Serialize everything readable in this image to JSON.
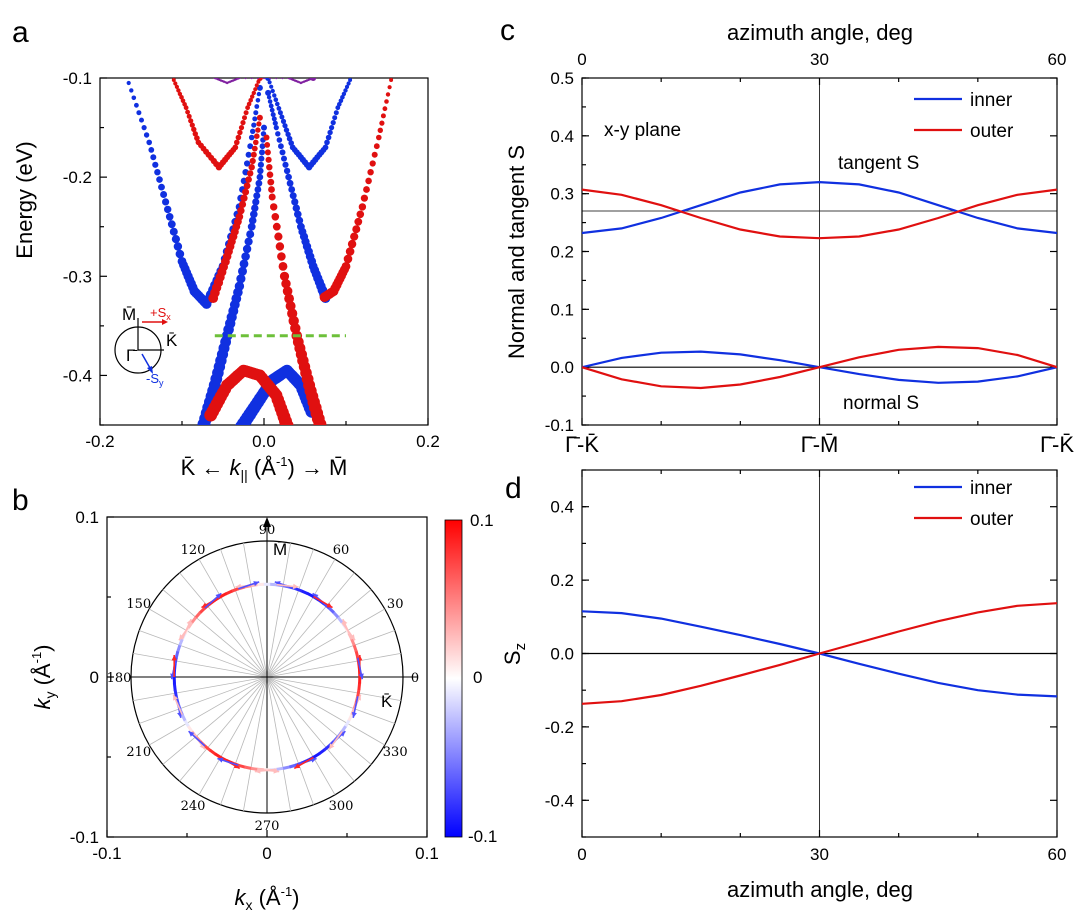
{
  "panel_labels": {
    "a": "a",
    "b": "b",
    "c": "c",
    "d": "d"
  },
  "chart_data": [
    {
      "id": "a",
      "type": "scatter",
      "xlabel_left": "K̄ ←",
      "xlabel_k": "k",
      "xlabel_sub": "||",
      "xlabel_unit": " (Å",
      "xlabel_exp": "-1",
      "xlabel_right": ") → M̄",
      "ylabel": "Energy (eV)",
      "xlim": [
        -0.2,
        0.2
      ],
      "ylim": [
        -0.45,
        -0.1
      ],
      "xticks": [
        "-0.2",
        "0.0",
        "0.2"
      ],
      "yticks": [
        "-0.1",
        "-0.2",
        "-0.3",
        "-0.4"
      ],
      "fermi_line_energy": -0.36,
      "fermi_line_color": "#6dc03a",
      "inset": {
        "m": "M̄",
        "k": "K̄",
        "g": "Γ̄",
        "sx": "+S",
        "sx_sub": "x",
        "sy": "-S",
        "sy_sub": "y"
      },
      "series": [
        {
          "color": "#1030e0",
          "points": [
            [
              -0.165,
              -0.105
            ],
            [
              -0.14,
              -0.165
            ],
            [
              -0.12,
              -0.225
            ],
            [
              -0.1,
              -0.285
            ],
            [
              -0.085,
              -0.315
            ],
            [
              -0.07,
              -0.328
            ]
          ]
        },
        {
          "color": "#1030e0",
          "points": [
            [
              -0.07,
              -0.328
            ],
            [
              -0.05,
              -0.29
            ],
            [
              -0.03,
              -0.23
            ],
            [
              -0.015,
              -0.16
            ],
            [
              -0.005,
              -0.11
            ]
          ]
        },
        {
          "color": "#1030e0",
          "points": [
            [
              0.105,
              -0.102
            ],
            [
              0.09,
              -0.13
            ],
            [
              0.075,
              -0.17
            ],
            [
              0.055,
              -0.19
            ],
            [
              0.035,
              -0.17
            ],
            [
              0.02,
              -0.135
            ],
            [
              0.005,
              -0.1
            ]
          ]
        },
        {
          "color": "#1030e0",
          "points": [
            [
              0.075,
              -0.322
            ],
            [
              0.06,
              -0.29
            ],
            [
              0.045,
              -0.25
            ],
            [
              0.03,
              -0.2
            ],
            [
              0.015,
              -0.15
            ],
            [
              0.005,
              -0.115
            ]
          ]
        },
        {
          "color": "#1030e0",
          "points": [
            [
              -0.075,
              -0.455
            ],
            [
              -0.06,
              -0.41
            ],
            [
              -0.045,
              -0.36
            ],
            [
              -0.03,
              -0.31
            ],
            [
              -0.015,
              -0.25
            ],
            [
              -0.005,
              -0.2
            ],
            [
              0.0,
              -0.15
            ]
          ]
        },
        {
          "color": "#1030e0",
          "points": [
            [
              -0.03,
              -0.455
            ],
            [
              -0.01,
              -0.43
            ],
            [
              0.01,
              -0.405
            ],
            [
              0.028,
              -0.395
            ],
            [
              0.045,
              -0.41
            ],
            [
              0.06,
              -0.44
            ]
          ]
        },
        {
          "color": "#e01010",
          "points": [
            [
              -0.11,
              -0.102
            ],
            [
              -0.095,
              -0.13
            ],
            [
              -0.08,
              -0.165
            ],
            [
              -0.055,
              -0.19
            ],
            [
              -0.035,
              -0.17
            ],
            [
              -0.02,
              -0.13
            ],
            [
              -0.005,
              -0.1
            ]
          ]
        },
        {
          "color": "#e01010",
          "points": [
            [
              0.155,
              -0.102
            ],
            [
              0.14,
              -0.16
            ],
            [
              0.12,
              -0.23
            ],
            [
              0.1,
              -0.29
            ],
            [
              0.085,
              -0.315
            ],
            [
              0.072,
              -0.322
            ]
          ]
        },
        {
          "color": "#e01010",
          "points": [
            [
              -0.065,
              -0.44
            ],
            [
              -0.045,
              -0.41
            ],
            [
              -0.025,
              -0.395
            ],
            [
              -0.005,
              -0.4
            ],
            [
              0.015,
              -0.42
            ],
            [
              0.03,
              -0.455
            ]
          ]
        },
        {
          "color": "#e01010",
          "points": [
            [
              -0.062,
              -0.322
            ],
            [
              -0.045,
              -0.28
            ],
            [
              -0.03,
              -0.24
            ],
            [
              -0.015,
              -0.19
            ],
            [
              -0.005,
              -0.14
            ]
          ]
        },
        {
          "color": "#e01010",
          "points": [
            [
              0.07,
              -0.455
            ],
            [
              0.055,
              -0.41
            ],
            [
              0.04,
              -0.36
            ],
            [
              0.025,
              -0.3
            ],
            [
              0.01,
              -0.22
            ],
            [
              0.003,
              -0.16
            ]
          ]
        },
        {
          "color": "#8020a0",
          "points": [
            [
              -0.06,
              -0.1
            ],
            [
              -0.045,
              -0.105
            ],
            [
              -0.03,
              -0.1
            ],
            [
              0.03,
              -0.1
            ],
            [
              0.045,
              -0.105
            ],
            [
              0.06,
              -0.1
            ]
          ]
        }
      ]
    },
    {
      "id": "b",
      "type": "scatter",
      "xlabel": "k",
      "xlabel_sub": "x",
      "xlabel_unit": " (Å",
      "xlabel_exp": "-1",
      "xlabel_close": ")",
      "ylabel": "k",
      "ylabel_sub": "y",
      "ylabel_unit": " (Å",
      "ylabel_exp": "-1",
      "ylabel_close": ")",
      "xticks": [
        "-0.1",
        "0",
        "0.1"
      ],
      "yticks": [
        "0.1",
        "0",
        "-0.1"
      ],
      "xlim": [
        -0.1,
        0.1
      ],
      "ylim": [
        -0.1,
        0.1
      ],
      "polar_angles": [
        "0",
        "30",
        "60",
        "90",
        "120",
        "150",
        "180",
        "210",
        "240",
        "270",
        "300",
        "330"
      ],
      "m_label": "M̄",
      "k_label": "K̄",
      "colorbar": {
        "max": "0.1",
        "mid": "0",
        "min": "-0.1",
        "colors": [
          "#ff0000",
          "#ffffff",
          "#0000ff"
        ]
      },
      "contour_radius": 0.058
    },
    {
      "id": "c",
      "type": "line",
      "xlabel_top": "azimuth angle, deg",
      "xticks_top": [
        "0",
        "30",
        "60"
      ],
      "xticks_bottom": [
        "Γ̄-K̄",
        "Γ̄-M̄",
        "Γ̄-K̄"
      ],
      "ylabel": "Normal and tangent S",
      "xlim": [
        0,
        60
      ],
      "ylim": [
        -0.1,
        0.5
      ],
      "yticks": [
        "0.5",
        "0.4",
        "0.3",
        "0.2",
        "0.1",
        "0.0",
        "-0.1"
      ],
      "annotations": {
        "plane": "x-y plane",
        "tangent": "tangent S",
        "normal": "normal S"
      },
      "reference_line": 0.27,
      "series": [
        {
          "name": "inner",
          "color": "#1030e0",
          "x": [
            0,
            5,
            10,
            15,
            20,
            25,
            30,
            35,
            40,
            45,
            50,
            55,
            60
          ],
          "y": [
            0.232,
            0.24,
            0.258,
            0.28,
            0.302,
            0.316,
            0.32,
            0.316,
            0.302,
            0.28,
            0.258,
            0.24,
            0.232
          ]
        },
        {
          "name": "outer",
          "color": "#e01010",
          "x": [
            0,
            5,
            10,
            15,
            20,
            25,
            30,
            35,
            40,
            45,
            50,
            55,
            60
          ],
          "y": [
            0.307,
            0.298,
            0.28,
            0.258,
            0.238,
            0.226,
            0.223,
            0.226,
            0.238,
            0.258,
            0.28,
            0.298,
            0.307
          ]
        },
        {
          "name": "",
          "color": "#1030e0",
          "x": [
            0,
            5,
            10,
            15,
            20,
            25,
            30,
            35,
            40,
            45,
            50,
            55,
            60
          ],
          "y": [
            0.0,
            0.016,
            0.025,
            0.027,
            0.022,
            0.012,
            0.0,
            -0.012,
            -0.022,
            -0.027,
            -0.025,
            -0.016,
            0.0
          ]
        },
        {
          "name": "",
          "color": "#e01010",
          "x": [
            0,
            5,
            10,
            15,
            20,
            25,
            30,
            35,
            40,
            45,
            50,
            55,
            60
          ],
          "y": [
            0.0,
            -0.021,
            -0.033,
            -0.036,
            -0.03,
            -0.017,
            0.0,
            0.017,
            0.03,
            0.035,
            0.033,
            0.021,
            0.0
          ]
        }
      ]
    },
    {
      "id": "d",
      "type": "line",
      "xlabel": "azimuth angle, deg",
      "ylabel": "S",
      "ylabel_sub": "z",
      "xlim": [
        0,
        60
      ],
      "ylim": [
        -0.5,
        0.5
      ],
      "xticks": [
        "0",
        "30",
        "60"
      ],
      "yticks": [
        "0.4",
        "0.2",
        "0.0",
        "-0.2",
        "-0.4"
      ],
      "series": [
        {
          "name": "inner",
          "color": "#1030e0",
          "x": [
            0,
            5,
            10,
            15,
            20,
            25,
            30,
            35,
            40,
            45,
            50,
            55,
            60
          ],
          "y": [
            0.115,
            0.11,
            0.095,
            0.073,
            0.05,
            0.026,
            0.0,
            -0.028,
            -0.055,
            -0.08,
            -0.1,
            -0.112,
            -0.117
          ]
        },
        {
          "name": "outer",
          "color": "#e01010",
          "x": [
            0,
            5,
            10,
            15,
            20,
            25,
            30,
            35,
            40,
            45,
            50,
            55,
            60
          ],
          "y": [
            -0.137,
            -0.13,
            -0.113,
            -0.088,
            -0.06,
            -0.031,
            0.0,
            0.03,
            0.06,
            0.088,
            0.112,
            0.13,
            0.137
          ]
        }
      ]
    }
  ]
}
